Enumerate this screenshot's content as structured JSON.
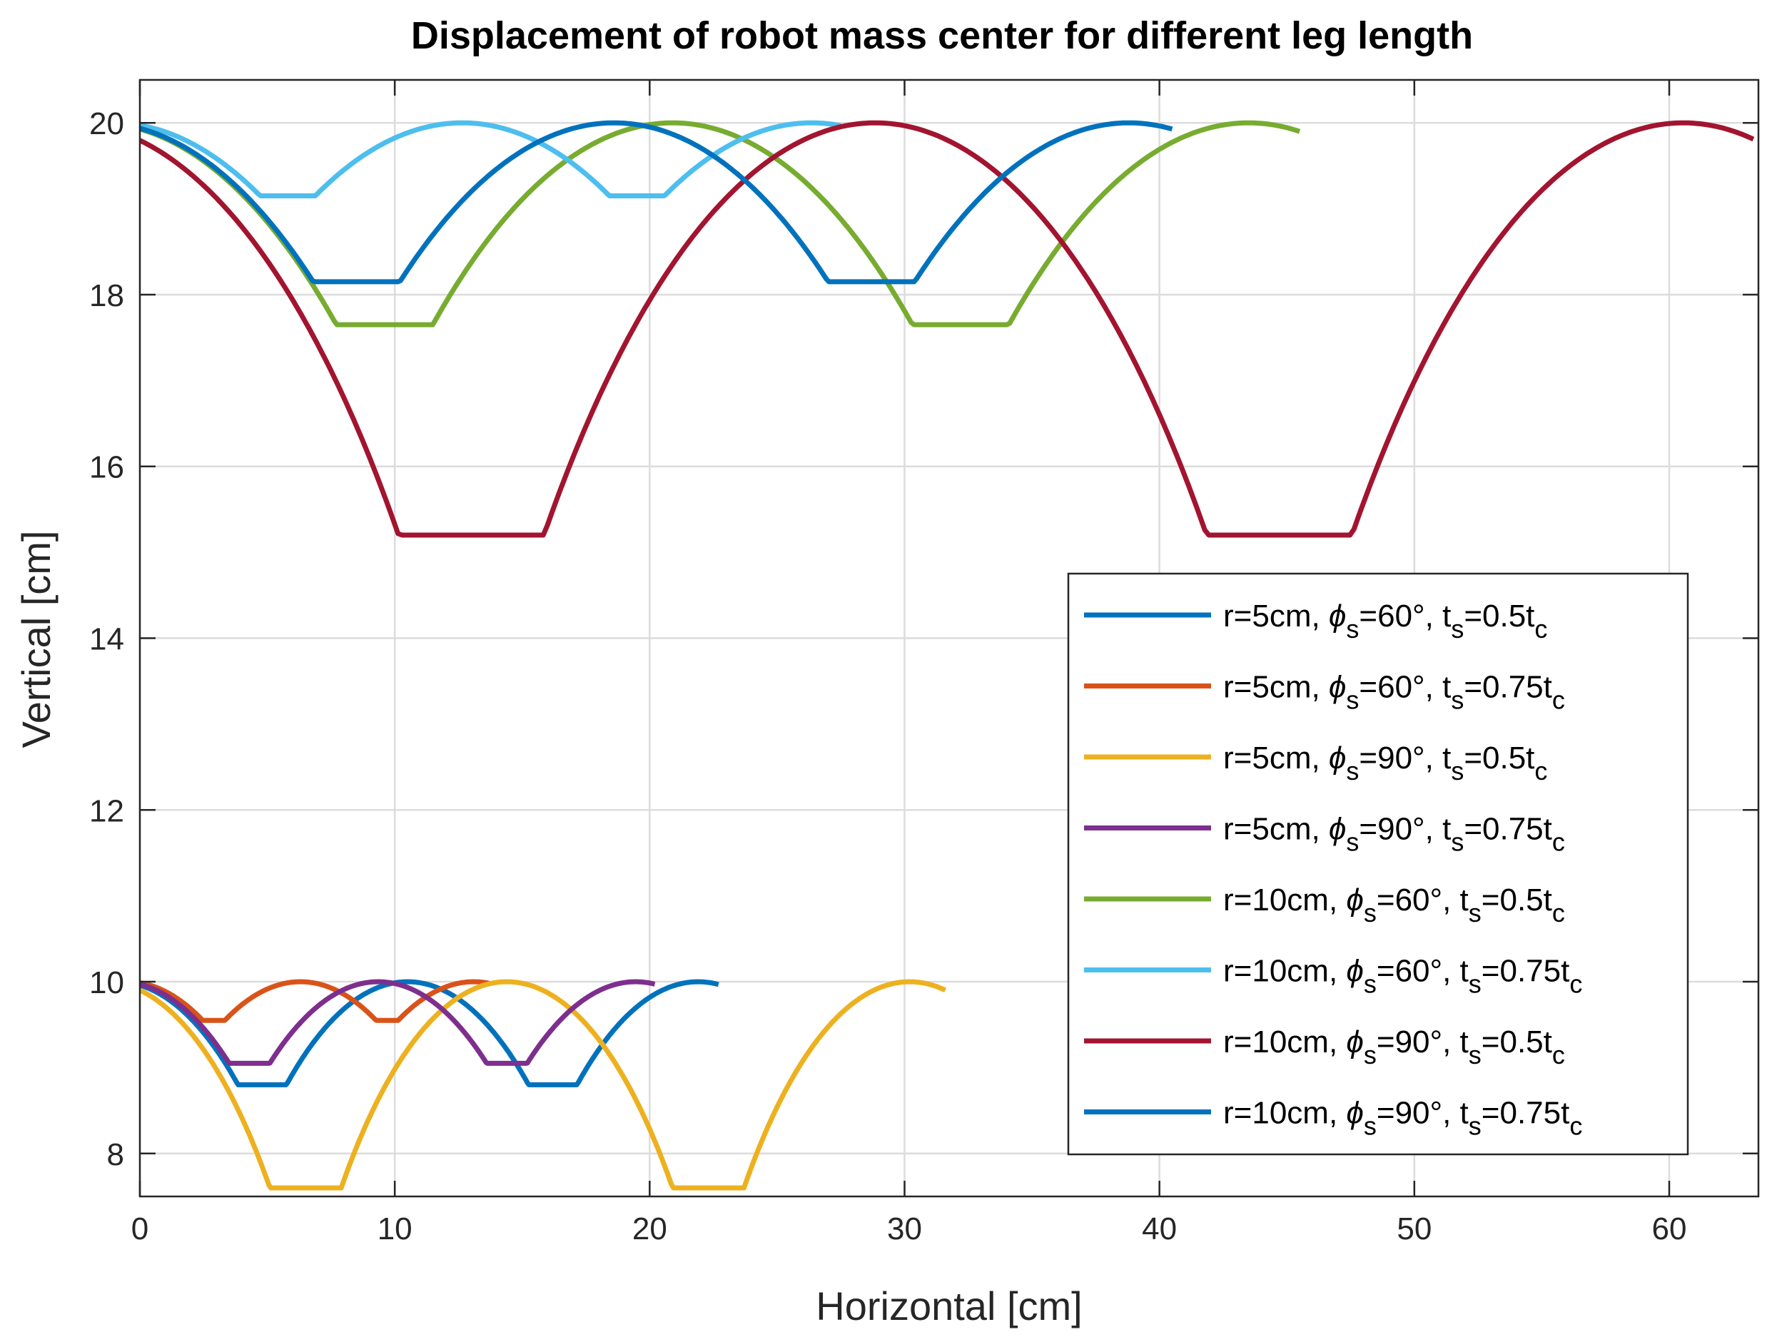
{
  "chart_data": {
    "type": "line",
    "title": "Displacement of robot mass center for different leg length",
    "xlabel": "Horizontal [cm]",
    "ylabel": "Vertical [cm]",
    "xlim": [
      0,
      63.5
    ],
    "ylim": [
      7.5,
      20.5
    ],
    "xticks": [
      0,
      10,
      20,
      30,
      40,
      50,
      60
    ],
    "yticks": [
      8,
      10,
      12,
      14,
      16,
      18,
      20
    ],
    "grid": true,
    "legend_position": "right",
    "series": [
      {
        "name": "r=5cm, φs=60°, ts=0.5tc",
        "legend": {
          "pre": "r=5cm, ",
          "phi": "ϕ",
          "sub1": "s",
          "mid": "=60°, t",
          "sub2": "s",
          "eq": "=0.5t",
          "sub3": "c"
        },
        "color": "#0072BD",
        "r": 5,
        "phi": 60,
        "ts": 0.5,
        "x_end": 22.7,
        "minima": [
          {
            "x": 4.8,
            "y": 8.8
          },
          {
            "x": 16.2,
            "y": 8.8
          }
        ]
      },
      {
        "name": "r=5cm, φs=60°, ts=0.75tc",
        "legend": {
          "pre": "r=5cm, ",
          "phi": "ϕ",
          "sub1": "s",
          "mid": "=60°, t",
          "sub2": "s",
          "eq": "=0.75t",
          "sub3": "c"
        },
        "color": "#D95319",
        "r": 5,
        "phi": 60,
        "ts": 0.75,
        "x_end": 13.7,
        "minima": [
          {
            "x": 2.9,
            "y": 9.55
          },
          {
            "x": 9.7,
            "y": 9.55
          }
        ]
      },
      {
        "name": "r=5cm, φs=90°, ts=0.5tc",
        "legend": {
          "pre": "r=5cm, ",
          "phi": "ϕ",
          "sub1": "s",
          "mid": "=90°, t",
          "sub2": "s",
          "eq": "=0.5t",
          "sub3": "c"
        },
        "color": "#EDB120",
        "r": 5,
        "phi": 90,
        "ts": 0.5,
        "x_end": 31.6,
        "minima": [
          {
            "x": 6.5,
            "y": 7.6
          },
          {
            "x": 22.3,
            "y": 7.6
          }
        ]
      },
      {
        "name": "r=5cm, φs=90°, ts=0.75tc",
        "legend": {
          "pre": "r=5cm, ",
          "phi": "ϕ",
          "sub1": "s",
          "mid": "=90°, t",
          "sub2": "s",
          "eq": "=0.75t",
          "sub3": "c"
        },
        "color": "#7E2F8E",
        "r": 5,
        "phi": 90,
        "ts": 0.75,
        "x_end": 20.2,
        "minima": [
          {
            "x": 4.3,
            "y": 9.05
          },
          {
            "x": 14.4,
            "y": 9.05
          }
        ]
      },
      {
        "name": "r=10cm, φs=60°, ts=0.5tc",
        "legend": {
          "pre": "r=10cm, ",
          "phi": "ϕ",
          "sub1": "s",
          "mid": "=60°, t",
          "sub2": "s",
          "eq": "=0.5t",
          "sub3": "c"
        },
        "color": "#77AC30",
        "r": 10,
        "phi": 60,
        "ts": 0.5,
        "x_end": 45.5,
        "minima": [
          {
            "x": 9.6,
            "y": 17.65
          },
          {
            "x": 32.2,
            "y": 17.65
          }
        ]
      },
      {
        "name": "r=10cm, φs=60°, ts=0.75tc",
        "legend": {
          "pre": "r=10cm, ",
          "phi": "ϕ",
          "sub1": "s",
          "mid": "=60°, t",
          "sub2": "s",
          "eq": "=0.75t",
          "sub3": "c"
        },
        "color": "#4DBEEE",
        "r": 10,
        "phi": 60,
        "ts": 0.75,
        "x_end": 27.5,
        "minima": [
          {
            "x": 5.8,
            "y": 19.15
          },
          {
            "x": 19.5,
            "y": 19.15
          }
        ]
      },
      {
        "name": "r=10cm, φs=90°, ts=0.5tc",
        "legend": {
          "pre": "r=10cm, ",
          "phi": "ϕ",
          "sub1": "s",
          "mid": "=90°, t",
          "sub2": "s",
          "eq": "=0.5t",
          "sub3": "c"
        },
        "color": "#A2142F",
        "r": 10,
        "phi": 90,
        "ts": 0.5,
        "x_end": 63.3,
        "minima": [
          {
            "x": 13.0,
            "y": 15.2
          },
          {
            "x": 44.7,
            "y": 15.2
          }
        ]
      },
      {
        "name": "r=10cm, φs=90°, ts=0.75tc",
        "legend": {
          "pre": "r=10cm, ",
          "phi": "ϕ",
          "sub1": "s",
          "mid": "=90°, t",
          "sub2": "s",
          "eq": "=0.75t",
          "sub3": "c"
        },
        "color": "#0072BD",
        "r": 10,
        "phi": 90,
        "ts": 0.75,
        "x_end": 40.5,
        "minima": [
          {
            "x": 8.5,
            "y": 18.15
          },
          {
            "x": 28.7,
            "y": 18.15
          }
        ]
      }
    ]
  }
}
